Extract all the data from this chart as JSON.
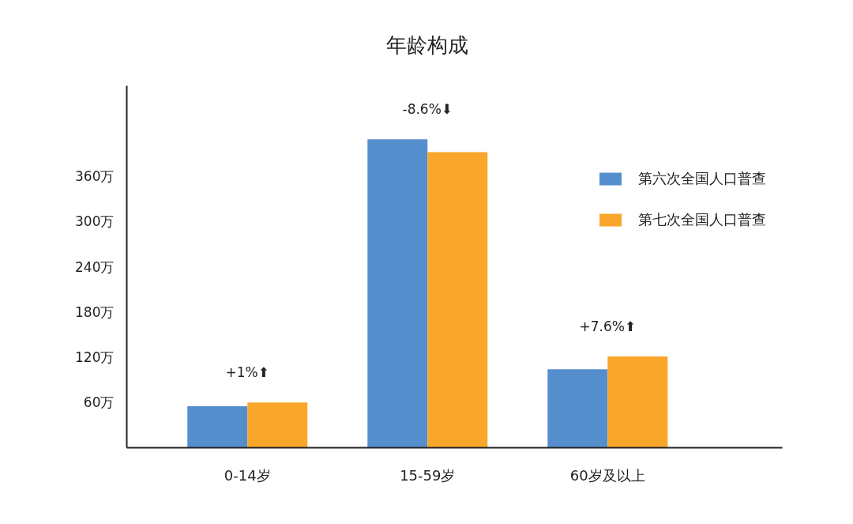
{
  "chart_data": {
    "type": "bar",
    "title": "年龄构成",
    "categories": [
      "0-14岁",
      "15-59岁",
      "60岁及以上"
    ],
    "series": [
      {
        "name": "第六次全国人口普查",
        "color": "#558ecd",
        "values": [
          55,
          409,
          104
        ]
      },
      {
        "name": "第七次全国人口普查",
        "color": "#f9a72b",
        "values": [
          60,
          392,
          121
        ]
      }
    ],
    "ylim": [
      0,
      480
    ],
    "yticks": [
      {
        "value": 60,
        "label": "60万"
      },
      {
        "value": 120,
        "label": "120万"
      },
      {
        "value": 180,
        "label": "180万"
      },
      {
        "value": 240,
        "label": "240万"
      },
      {
        "value": 300,
        "label": "300万"
      },
      {
        "value": 360,
        "label": "360万"
      }
    ],
    "annotations": [
      "+1%⬆",
      "-8.6%⬇",
      "+7.6%⬆"
    ],
    "legend": "top right"
  }
}
